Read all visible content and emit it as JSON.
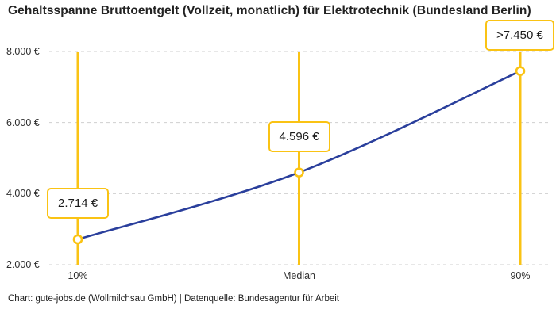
{
  "colors": {
    "accent_yellow": "#FAC314",
    "line_blue": "#2A3F9C",
    "grid_gray": "#CFCFCF",
    "text_dark": "#222222"
  },
  "chart_data": {
    "type": "line",
    "title": "Gehaltsspanne Bruttoentgelt (Vollzeit, monatlich) für Elektrotechnik (Bundesland Berlin)",
    "categories": [
      "10%",
      "Median",
      "90%"
    ],
    "values": [
      2714,
      4596,
      7450
    ],
    "point_labels": [
      "2.714 €",
      "4.596 €",
      ">7.450 €"
    ],
    "y_ticks": [
      "2.000 €",
      "4.000 €",
      "6.000 €",
      "8.000 €"
    ],
    "y_tick_values": [
      2000,
      4000,
      6000,
      8000
    ],
    "ylim": [
      2000,
      8000
    ],
    "xlabel": "",
    "ylabel": "",
    "grid": "horizontal-dashed",
    "legend": "none",
    "annotations": "yellow vertical guide line at each category; value shown in yellow-bordered white box above each data point; open circle markers",
    "source": "Chart: gute-jobs.de (Wollmilchsau GmbH) | Datenquelle: Bundesagentur für Arbeit"
  }
}
